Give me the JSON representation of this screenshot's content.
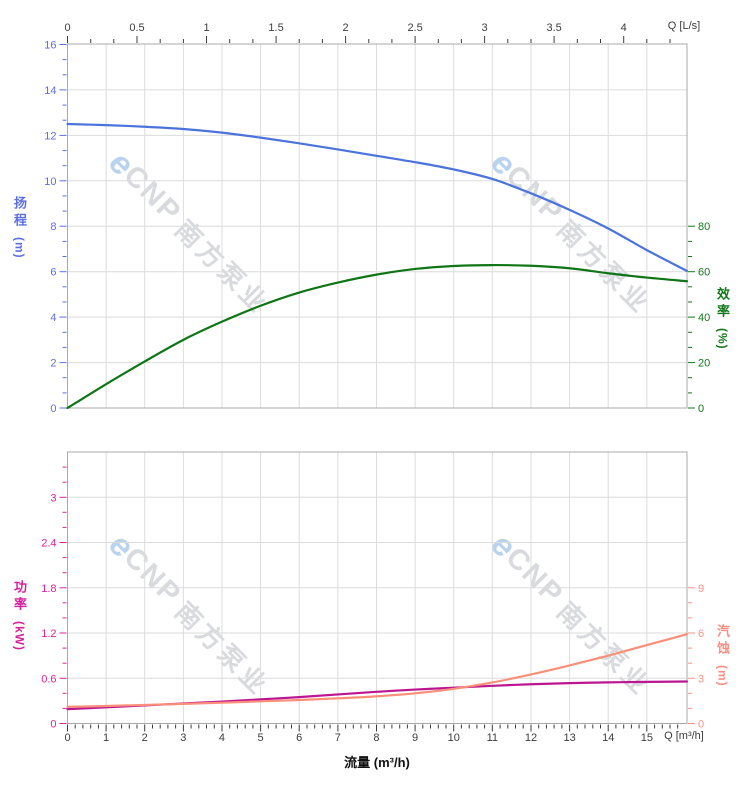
{
  "watermark": {
    "logo_glyph": "e",
    "brand": "CNP",
    "brand_cn": "南方泵业",
    "logo_color": "#b9d3ee",
    "text_color": "#d8dade"
  },
  "palette": {
    "grid": "#dcdcdc",
    "frame": "#a9a9a9",
    "background": "#ffffff"
  },
  "axes": {
    "top_x": {
      "unit_label": "Q [L/s]",
      "tick_labels": [
        "0",
        "0.5",
        "1",
        "1.5",
        "2",
        "2.5",
        "3",
        "3.5",
        "4"
      ],
      "tick_values": [
        0,
        0.5,
        1,
        1.5,
        2,
        2.5,
        3,
        3.5,
        4
      ],
      "minor_per_major": 3,
      "color": "#3c3c3c"
    },
    "bottom_x": {
      "unit_label": "Q [m³/h]",
      "title": "流量 (m³/h)",
      "tick_labels": [
        "0",
        "1",
        "2",
        "3",
        "4",
        "5",
        "6",
        "7",
        "8",
        "9",
        "10",
        "11",
        "12",
        "13",
        "14",
        "15"
      ],
      "tick_values": [
        0,
        1,
        2,
        3,
        4,
        5,
        6,
        7,
        8,
        9,
        10,
        11,
        12,
        13,
        14,
        15
      ],
      "minor_per_major": 5,
      "color": "#3c3c3c"
    },
    "head": {
      "title_cn": "扬程",
      "unit": "(m)",
      "tick_labels": [
        "0",
        "2",
        "4",
        "6",
        "8",
        "10",
        "12",
        "14",
        "16"
      ],
      "tick_values": [
        0,
        2,
        4,
        6,
        8,
        10,
        12,
        14,
        16
      ],
      "minor_per_major": 3,
      "color": "#5c6fe3",
      "curve_color": "#4a73dc"
    },
    "eff": {
      "title_cn": "效率",
      "unit": "(%)",
      "tick_labels": [
        "0",
        "20",
        "40",
        "60",
        "80"
      ],
      "tick_values": [
        0,
        20,
        40,
        60,
        80
      ],
      "minor_per_major": 3,
      "color": "#13781b",
      "curve_color": "#0f7516"
    },
    "power": {
      "title_cn": "功率",
      "unit": "(kW)",
      "tick_labels": [
        "0",
        "0.6",
        "1.2",
        "1.8",
        "2.4",
        "3"
      ],
      "tick_values": [
        0,
        0.6,
        1.2,
        1.8,
        2.4,
        3
      ],
      "minor_per_major": 3,
      "color": "#e0219c",
      "curve_color": "#bc1591"
    },
    "npsh": {
      "title_cn": "汽蚀",
      "unit": "(m)",
      "tick_labels": [
        "0",
        "3",
        "6",
        "9"
      ],
      "tick_values": [
        0,
        3,
        6,
        9
      ],
      "minor_per_major": 3,
      "color": "#fa9184",
      "curve_color": "#f98f79"
    }
  },
  "chart_data": [
    {
      "type": "line",
      "name": "head-curve",
      "series_label": "扬程",
      "y_axis": "head",
      "x_unit": "m³/h",
      "x": [
        0,
        1,
        2,
        3,
        4,
        5,
        6,
        7,
        8,
        9,
        10,
        11,
        12,
        13,
        14,
        15,
        16.04
      ],
      "y": [
        12.5,
        12.45,
        12.38,
        12.28,
        12.12,
        11.9,
        11.65,
        11.38,
        11.1,
        10.82,
        10.5,
        10.08,
        9.45,
        8.72,
        7.9,
        6.95,
        6.03
      ]
    },
    {
      "type": "line",
      "name": "efficiency-curve",
      "series_label": "效率",
      "y_axis": "eff",
      "x_unit": "m³/h",
      "x": [
        0,
        1,
        2,
        3,
        4,
        5,
        6,
        7,
        8,
        9,
        10,
        11,
        12,
        13,
        14,
        15,
        16.04
      ],
      "y": [
        0,
        10.5,
        20.5,
        30,
        38,
        45,
        50.8,
        55.2,
        58.7,
        61.2,
        62.5,
        62.9,
        62.6,
        61.5,
        59.3,
        57.4,
        55.8
      ]
    },
    {
      "type": "line",
      "name": "power-curve",
      "series_label": "功率",
      "y_axis": "power",
      "x_unit": "m³/h",
      "x": [
        0,
        1,
        2,
        3,
        4,
        5,
        6,
        7,
        8,
        9,
        10,
        11,
        12,
        13,
        14,
        15,
        16.04
      ],
      "y": [
        0.19,
        0.215,
        0.24,
        0.265,
        0.29,
        0.32,
        0.35,
        0.385,
        0.42,
        0.45,
        0.475,
        0.5,
        0.52,
        0.535,
        0.545,
        0.552,
        0.557
      ]
    },
    {
      "type": "line",
      "name": "npsh-curve",
      "series_label": "汽蚀",
      "y_axis": "npsh",
      "x_unit": "m³/h",
      "x": [
        0,
        1,
        2,
        3,
        4,
        5,
        6,
        7,
        8,
        9,
        10,
        11,
        12,
        13,
        14,
        15,
        16.04
      ],
      "y": [
        1.1,
        1.16,
        1.23,
        1.3,
        1.38,
        1.47,
        1.56,
        1.67,
        1.8,
        2.0,
        2.3,
        2.72,
        3.25,
        3.85,
        4.5,
        5.2,
        5.92
      ]
    }
  ]
}
